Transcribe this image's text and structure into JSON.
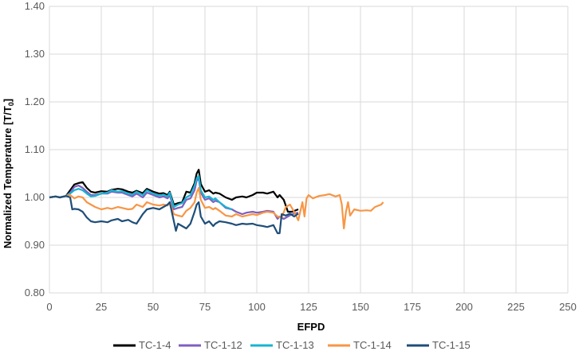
{
  "chart_data": {
    "type": "line",
    "xlabel": "EFPD",
    "ylabel_main": "Normalized Temperature [T/T",
    "ylabel_sub": "0",
    "ylabel_end": "]",
    "xlim": [
      0,
      250
    ],
    "ylim": [
      0.8,
      1.4
    ],
    "x_ticks": [
      0,
      25,
      50,
      75,
      100,
      125,
      150,
      175,
      200,
      225,
      250
    ],
    "x_tick_labels": [
      "0",
      "25",
      "50",
      "75",
      "100",
      "125",
      "150",
      "175",
      "200",
      "225",
      "250"
    ],
    "y_ticks": [
      0.8,
      0.9,
      1.0,
      1.1,
      1.2,
      1.3,
      1.4
    ],
    "y_tick_labels": [
      "0.80",
      "0.90",
      "1.00",
      "1.10",
      "1.20",
      "1.30",
      "1.40"
    ],
    "grid": true,
    "legend_position": "bottom",
    "series": [
      {
        "name": "TC-1-4",
        "color": "#000000",
        "x": [
          0,
          3,
          5,
          8,
          10,
          12,
          14,
          16,
          18,
          20,
          22,
          25,
          28,
          30,
          33,
          35,
          38,
          40,
          42,
          45,
          47,
          50,
          53,
          55,
          57,
          58,
          60,
          62,
          64,
          66,
          68,
          70,
          71,
          72,
          73,
          75,
          77,
          79,
          80,
          82,
          85,
          88,
          90,
          93,
          95,
          98,
          100,
          103,
          105,
          108,
          110,
          111,
          113,
          115,
          117,
          120
        ],
        "y": [
          1.0,
          1.002,
          1.0,
          1.003,
          1.015,
          1.027,
          1.03,
          1.032,
          1.02,
          1.012,
          1.01,
          1.013,
          1.012,
          1.016,
          1.018,
          1.017,
          1.012,
          1.01,
          1.014,
          1.009,
          1.018,
          1.012,
          1.008,
          1.009,
          1.005,
          1.012,
          0.985,
          0.988,
          0.99,
          1.012,
          1.01,
          1.03,
          1.05,
          1.058,
          1.028,
          1.012,
          1.015,
          1.008,
          1.01,
          1.008,
          1.0,
          0.995,
          1.0,
          1.002,
          1.0,
          1.005,
          1.01,
          1.01,
          1.008,
          1.012,
          1.0,
          1.005,
          0.995,
          0.97,
          0.97,
          0.975
        ]
      },
      {
        "name": "TC-1-12",
        "color": "#7f5fbf",
        "x": [
          0,
          3,
          5,
          8,
          10,
          12,
          14,
          16,
          18,
          20,
          22,
          25,
          28,
          30,
          33,
          35,
          38,
          40,
          42,
          45,
          47,
          50,
          53,
          55,
          57,
          58,
          60,
          62,
          64,
          66,
          68,
          70,
          71,
          72,
          73,
          75,
          77,
          79,
          80,
          82,
          85,
          88,
          90,
          93,
          95,
          98,
          100,
          103,
          105,
          108,
          110,
          111,
          113,
          115,
          117,
          120
        ],
        "y": [
          1.0,
          1.002,
          1.0,
          1.003,
          1.01,
          1.022,
          1.025,
          1.02,
          1.012,
          1.005,
          1.005,
          1.008,
          1.008,
          1.012,
          1.01,
          1.01,
          1.005,
          1.002,
          1.008,
          1.0,
          1.01,
          1.005,
          1.0,
          1.002,
          0.998,
          1.005,
          0.975,
          0.978,
          0.98,
          0.995,
          0.998,
          1.015,
          1.035,
          1.04,
          1.01,
          0.995,
          0.998,
          0.99,
          0.993,
          0.99,
          0.978,
          0.975,
          0.97,
          0.965,
          0.968,
          0.97,
          0.968,
          0.97,
          0.972,
          0.97,
          0.955,
          0.96,
          0.955,
          0.96,
          0.965,
          0.968
        ]
      },
      {
        "name": "TC-1-13",
        "color": "#17b4d2",
        "x": [
          0,
          3,
          5,
          8,
          10,
          12,
          14,
          16,
          18,
          20,
          22,
          25,
          28,
          30,
          33,
          35,
          38,
          40,
          42,
          45,
          47,
          50,
          53,
          55,
          57,
          58,
          60,
          62,
          64,
          66,
          68,
          70,
          71,
          72,
          73,
          75,
          77,
          79,
          80,
          82,
          85,
          88
        ],
        "y": [
          1.0,
          1.002,
          1.0,
          1.003,
          1.008,
          1.015,
          1.018,
          1.015,
          1.008,
          1.002,
          1.003,
          1.008,
          1.01,
          1.015,
          1.012,
          1.013,
          1.008,
          1.006,
          1.012,
          1.005,
          1.015,
          1.008,
          1.004,
          1.006,
          1.002,
          1.01,
          0.98,
          0.985,
          0.988,
          1.0,
          1.005,
          1.025,
          1.04,
          1.045,
          1.015,
          1.0,
          1.002,
          0.995,
          0.998,
          0.99,
          0.98,
          0.975
        ]
      },
      {
        "name": "TC-1-14",
        "color": "#f79646",
        "x": [
          0,
          3,
          5,
          8,
          10,
          12,
          14,
          16,
          18,
          20,
          22,
          25,
          28,
          30,
          33,
          35,
          38,
          40,
          42,
          45,
          47,
          50,
          53,
          55,
          57,
          58,
          60,
          62,
          64,
          66,
          68,
          70,
          71,
          72,
          73,
          75,
          77,
          79,
          80,
          82,
          85,
          88,
          90,
          93,
          95,
          98,
          100,
          103,
          105,
          108,
          110,
          112,
          114,
          116,
          118,
          120,
          122,
          123,
          124,
          125,
          127,
          130,
          133,
          135,
          138,
          140,
          141,
          142,
          143,
          144,
          145,
          147,
          150,
          153,
          155,
          157,
          160,
          161
        ],
        "y": [
          1.0,
          1.002,
          1.0,
          1.003,
          1.005,
          0.998,
          1.002,
          1.0,
          0.99,
          0.985,
          0.98,
          0.975,
          0.978,
          0.976,
          0.98,
          0.978,
          0.975,
          0.976,
          0.985,
          0.98,
          0.99,
          0.985,
          0.983,
          0.985,
          0.983,
          0.99,
          0.965,
          0.962,
          0.96,
          0.972,
          0.978,
          0.99,
          1.01,
          1.02,
          0.995,
          0.978,
          0.98,
          0.975,
          0.978,
          0.972,
          0.962,
          0.96,
          0.965,
          0.96,
          0.962,
          0.965,
          0.963,
          0.968,
          0.97,
          0.968,
          0.96,
          0.958,
          0.98,
          0.985,
          0.97,
          0.952,
          0.99,
          0.96,
          0.998,
          1.005,
          0.998,
          1.003,
          1.005,
          1.007,
          1.002,
          1.005,
          0.985,
          0.935,
          0.97,
          0.99,
          0.962,
          0.975,
          0.972,
          0.973,
          0.972,
          0.98,
          0.985,
          0.99
        ]
      },
      {
        "name": "TC-1-15",
        "color": "#1f4e79",
        "x": [
          0,
          3,
          5,
          8,
          10,
          11,
          12,
          14,
          16,
          18,
          20,
          22,
          25,
          28,
          30,
          33,
          35,
          38,
          40,
          42,
          45,
          47,
          50,
          53,
          55,
          57,
          58,
          60,
          61,
          62,
          64,
          66,
          68,
          70,
          71,
          72,
          73,
          75,
          77,
          79,
          80,
          82,
          85,
          88,
          90,
          93,
          95,
          98,
          100,
          103,
          105,
          108,
          110,
          111,
          112,
          114,
          116,
          118,
          120
        ],
        "y": [
          1.0,
          1.002,
          1.0,
          1.003,
          1.0,
          0.975,
          0.976,
          0.975,
          0.97,
          0.958,
          0.95,
          0.948,
          0.95,
          0.948,
          0.952,
          0.955,
          0.95,
          0.953,
          0.948,
          0.945,
          0.965,
          0.975,
          0.978,
          0.975,
          0.98,
          0.985,
          0.99,
          0.95,
          0.93,
          0.945,
          0.94,
          0.935,
          0.945,
          0.97,
          0.985,
          0.99,
          0.96,
          0.945,
          0.95,
          0.94,
          0.945,
          0.95,
          0.948,
          0.945,
          0.942,
          0.945,
          0.944,
          0.945,
          0.942,
          0.94,
          0.938,
          0.942,
          0.925,
          0.925,
          0.965,
          0.962,
          0.966,
          0.96,
          0.966
        ]
      }
    ]
  }
}
